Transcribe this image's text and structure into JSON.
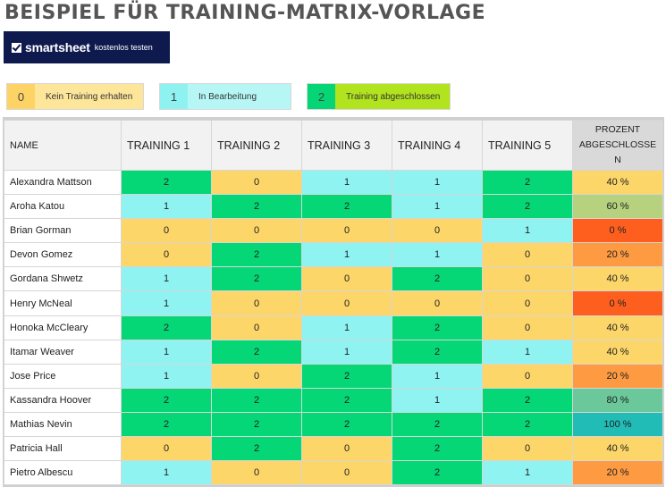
{
  "title": "BEISPIEL FÜR TRAINING-MATRIX-VORLAGE",
  "banner": {
    "brand": "smartsheet",
    "cta": "kostenlos testen",
    "bg_color": "#0e1a4e"
  },
  "legend": [
    {
      "value": "0",
      "label": "Kein Training erhalten",
      "color": "#fdd366"
    },
    {
      "value": "1",
      "label": "In Bearbeitung",
      "color": "#8ef2f0"
    },
    {
      "value": "2",
      "label": "Training abgeschlossen",
      "color": "#05d574"
    }
  ],
  "table": {
    "headers": [
      "NAME",
      "TRAINING 1",
      "TRAINING 2",
      "TRAINING 3",
      "TRAINING 4",
      "TRAINING 5",
      "PROZENT ABGESCHLOSSE N"
    ],
    "rows": [
      {
        "name": "Alexandra Mattson",
        "t": [
          "2",
          "0",
          "1",
          "1",
          "2"
        ],
        "pct": "40 %"
      },
      {
        "name": "Aroha Katou",
        "t": [
          "1",
          "2",
          "2",
          "1",
          "2"
        ],
        "pct": "60 %"
      },
      {
        "name": "Brian Gorman",
        "t": [
          "0",
          "0",
          "0",
          "0",
          "1"
        ],
        "pct": "0 %"
      },
      {
        "name": "Devon Gomez",
        "t": [
          "0",
          "2",
          "1",
          "1",
          "0"
        ],
        "pct": "20 %"
      },
      {
        "name": "Gordana Shwetz",
        "t": [
          "1",
          "2",
          "0",
          "2",
          "0"
        ],
        "pct": "40 %"
      },
      {
        "name": "Henry McNeal",
        "t": [
          "1",
          "0",
          "0",
          "0",
          "0"
        ],
        "pct": "0 %"
      },
      {
        "name": "Honoka McCleary",
        "t": [
          "2",
          "0",
          "1",
          "2",
          "0"
        ],
        "pct": "40 %"
      },
      {
        "name": "Itamar Weaver",
        "t": [
          "1",
          "2",
          "1",
          "2",
          "1"
        ],
        "pct": "40 %"
      },
      {
        "name": "Jose Price",
        "t": [
          "1",
          "0",
          "2",
          "1",
          "0"
        ],
        "pct": "20 %"
      },
      {
        "name": "Kassandra Hoover",
        "t": [
          "2",
          "2",
          "2",
          "1",
          "2"
        ],
        "pct": "80 %"
      },
      {
        "name": "Mathias Nevin",
        "t": [
          "2",
          "2",
          "2",
          "2",
          "2"
        ],
        "pct": "100 %"
      },
      {
        "name": "Patricia Hall",
        "t": [
          "0",
          "2",
          "0",
          "2",
          "0"
        ],
        "pct": "40 %"
      },
      {
        "name": "Pietro Albescu",
        "t": [
          "1",
          "0",
          "0",
          "2",
          "1"
        ],
        "pct": "20 %"
      }
    ]
  },
  "colors": {
    "value_0": "#fdd66a",
    "value_1": "#8ff3f1",
    "value_2": "#05d676",
    "pct_0": "#fe5f1f",
    "pct_20": "#fd9a42",
    "pct_40": "#fdd66a",
    "pct_60": "#b6d27f",
    "pct_80": "#6ac89a",
    "pct_100": "#22bcb6"
  }
}
